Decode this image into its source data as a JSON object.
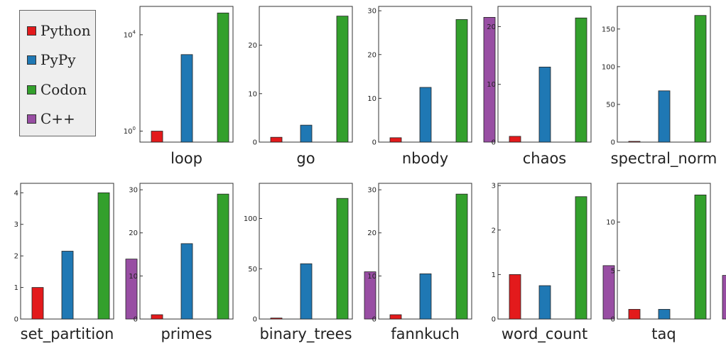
{
  "legend": [
    {
      "label": "Python",
      "color": "#e31a1c"
    },
    {
      "label": "PyPy",
      "color": "#1f78b4"
    },
    {
      "label": "Codon",
      "color": "#33a02c"
    },
    {
      "label": "C++",
      "color": "#984ea3"
    }
  ],
  "chart_data": [
    {
      "type": "bar",
      "title": "loop",
      "yscale": "log",
      "ylim": [
        0.35,
        150000
      ],
      "yticks": [
        {
          "v": 1,
          "base": "10",
          "exp": "0"
        },
        {
          "v": 10000,
          "base": "10",
          "exp": "4"
        }
      ],
      "series": [
        {
          "name": "Python",
          "values": [
            1
          ]
        },
        {
          "name": "PyPy",
          "values": [
            1500
          ]
        },
        {
          "name": "Codon",
          "values": [
            80000
          ]
        }
      ]
    },
    {
      "type": "bar",
      "title": "go",
      "ylim": [
        0,
        28
      ],
      "yticks": [
        0,
        10,
        20
      ],
      "series": [
        {
          "name": "Python",
          "values": [
            1
          ]
        },
        {
          "name": "PyPy",
          "values": [
            3.5
          ]
        },
        {
          "name": "Codon",
          "values": [
            26
          ]
        }
      ]
    },
    {
      "type": "bar",
      "title": "nbody",
      "ylim": [
        0,
        31
      ],
      "yticks": [
        0,
        10,
        20,
        30
      ],
      "series": [
        {
          "name": "Python",
          "values": [
            1
          ]
        },
        {
          "name": "PyPy",
          "values": [
            12.5
          ]
        },
        {
          "name": "Codon",
          "values": [
            28
          ]
        },
        {
          "name": "C++",
          "values": [
            28.5
          ]
        }
      ]
    },
    {
      "type": "bar",
      "title": "chaos",
      "ylim": [
        0,
        23.5
      ],
      "yticks": [
        0,
        10,
        20
      ],
      "series": [
        {
          "name": "Python",
          "values": [
            1
          ]
        },
        {
          "name": "PyPy",
          "values": [
            13
          ]
        },
        {
          "name": "Codon",
          "values": [
            21.5
          ]
        }
      ]
    },
    {
      "type": "bar",
      "title": "spectral_norm",
      "ylim": [
        0,
        180
      ],
      "yticks": [
        0,
        50,
        100,
        150
      ],
      "series": [
        {
          "name": "Python",
          "values": [
            1
          ]
        },
        {
          "name": "PyPy",
          "values": [
            68
          ]
        },
        {
          "name": "Codon",
          "values": [
            168
          ]
        }
      ]
    },
    {
      "type": "bar",
      "title": "set_partition",
      "ylim": [
        0,
        4.3
      ],
      "yticks": [
        0,
        1,
        2,
        3,
        4
      ],
      "series": [
        {
          "name": "Python",
          "values": [
            1
          ]
        },
        {
          "name": "PyPy",
          "values": [
            2.15
          ]
        },
        {
          "name": "Codon",
          "values": [
            4
          ]
        },
        {
          "name": "C++",
          "values": [
            1.9
          ]
        }
      ]
    },
    {
      "type": "bar",
      "title": "primes",
      "ylim": [
        0,
        31.5
      ],
      "yticks": [
        0,
        10,
        20,
        30
      ],
      "series": [
        {
          "name": "Python",
          "values": [
            1
          ]
        },
        {
          "name": "PyPy",
          "values": [
            17.5
          ]
        },
        {
          "name": "Codon",
          "values": [
            29
          ]
        }
      ]
    },
    {
      "type": "bar",
      "title": "binary_trees",
      "ylim": [
        0,
        135
      ],
      "yticks": [
        0,
        50,
        100
      ],
      "series": [
        {
          "name": "Python",
          "values": [
            1
          ]
        },
        {
          "name": "PyPy",
          "values": [
            55
          ]
        },
        {
          "name": "Codon",
          "values": [
            120
          ]
        },
        {
          "name": "C++",
          "values": [
            47
          ]
        }
      ]
    },
    {
      "type": "bar",
      "title": "fannkuch",
      "ylim": [
        0,
        31.5
      ],
      "yticks": [
        0,
        10,
        20,
        30
      ],
      "series": [
        {
          "name": "Python",
          "values": [
            1
          ]
        },
        {
          "name": "PyPy",
          "values": [
            10.5
          ]
        },
        {
          "name": "Codon",
          "values": [
            29
          ]
        }
      ]
    },
    {
      "type": "bar",
      "title": "word_count",
      "ylim": [
        0,
        3.05
      ],
      "yticks": [
        0,
        1,
        2,
        3
      ],
      "series": [
        {
          "name": "Python",
          "values": [
            1
          ]
        },
        {
          "name": "PyPy",
          "values": [
            0.75
          ]
        },
        {
          "name": "Codon",
          "values": [
            2.75
          ]
        },
        {
          "name": "C++",
          "values": [
            1.2
          ]
        }
      ]
    },
    {
      "type": "bar",
      "title": "taq",
      "ylim": [
        0,
        14
      ],
      "yticks": [
        0,
        5,
        10
      ],
      "series": [
        {
          "name": "Python",
          "values": [
            1
          ]
        },
        {
          "name": "PyPy",
          "values": [
            1
          ]
        },
        {
          "name": "Codon",
          "values": [
            12.8
          ]
        },
        {
          "name": "C++",
          "values": [
            4.5
          ]
        }
      ]
    }
  ]
}
